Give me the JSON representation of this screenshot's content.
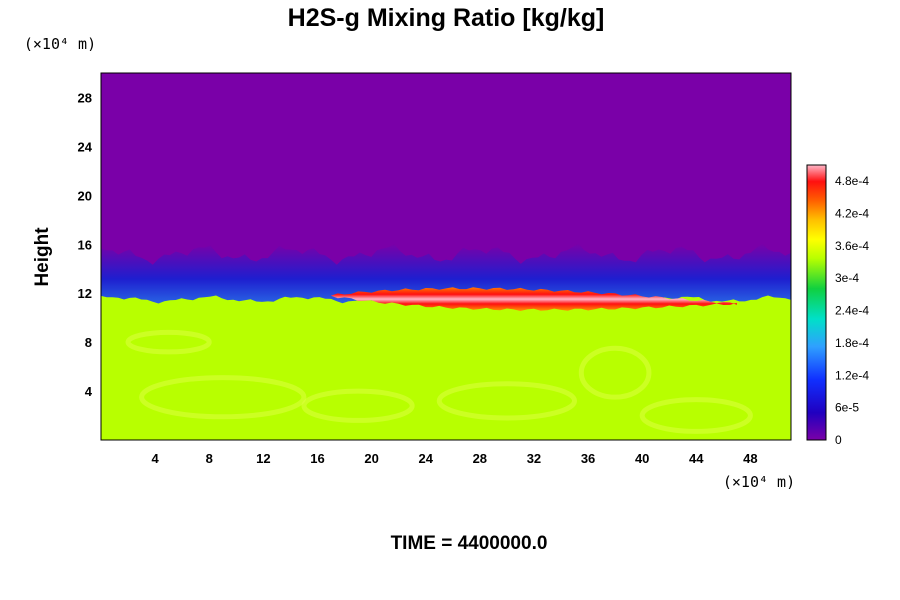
{
  "chart_data": {
    "type": "heatmap",
    "title": "H2S-g Mixing Ratio [kg/kg]",
    "xlabel": "",
    "ylabel": "Height",
    "x_unit": "(×10⁴ m)",
    "y_unit": "(×10⁴ m)",
    "xlim": [
      0,
      51
    ],
    "ylim": [
      0,
      30
    ],
    "x_ticks": [
      4,
      8,
      12,
      16,
      20,
      24,
      28,
      32,
      36,
      40,
      44,
      48
    ],
    "y_ticks": [
      4,
      8,
      12,
      16,
      20,
      24,
      28
    ],
    "colorbar": {
      "min": 0,
      "max": 0.00051,
      "labels": [
        "0",
        "6e-5",
        "1.2e-4",
        "1.8e-4",
        "2.4e-4",
        "3e-4",
        "3.6e-4",
        "4.2e-4",
        "4.8e-4"
      ],
      "label_values": [
        0,
        6e-05,
        0.00012,
        0.00018,
        0.00024,
        0.0003,
        0.00036,
        0.00042,
        0.00048
      ]
    },
    "field": {
      "background_value": 0.0,
      "lower_layer_value": 0.000345,
      "lower_layer_top_height": 11.5,
      "transition_top_height": 15.2,
      "peak_band": {
        "x_range": [
          17,
          47
        ],
        "center_height": 11.4,
        "value": 0.00051
      }
    },
    "grid": false,
    "legend": "colorbar-right"
  },
  "footer": {
    "time_label": "TIME = 4400000.0"
  }
}
